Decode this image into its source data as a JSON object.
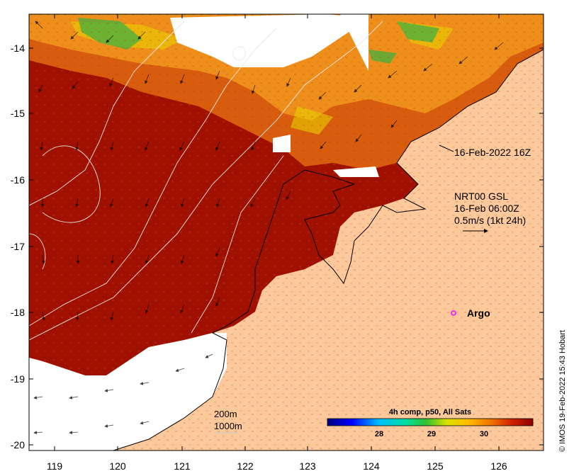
{
  "axes": {
    "x_ticks": [
      "119",
      "120",
      "121",
      "122",
      "123",
      "124",
      "125",
      "126"
    ],
    "y_ticks": [
      "-14",
      "-15",
      "-16",
      "-17",
      "-18",
      "-19",
      "-20"
    ]
  },
  "annotations": {
    "sst_time": "16-Feb-2022 16Z",
    "current_source": "NRT00 GSL",
    "current_time": "16-Feb 06:00Z",
    "current_scale": "0.5m/s (1kt 24h)",
    "argo_label": "Argo",
    "isobath_200": "200m",
    "isobath_1000": "1000m"
  },
  "colorbar": {
    "title": "4h comp, p50, All Sats",
    "ticks": [
      "28",
      "29",
      "30"
    ]
  },
  "credit": "© IMOS 19-Feb-2022 15:43 Hobart",
  "colors": {
    "land": "#FBC99B",
    "ocean_hot": "#A01000",
    "argo": "#FF00FF"
  }
}
